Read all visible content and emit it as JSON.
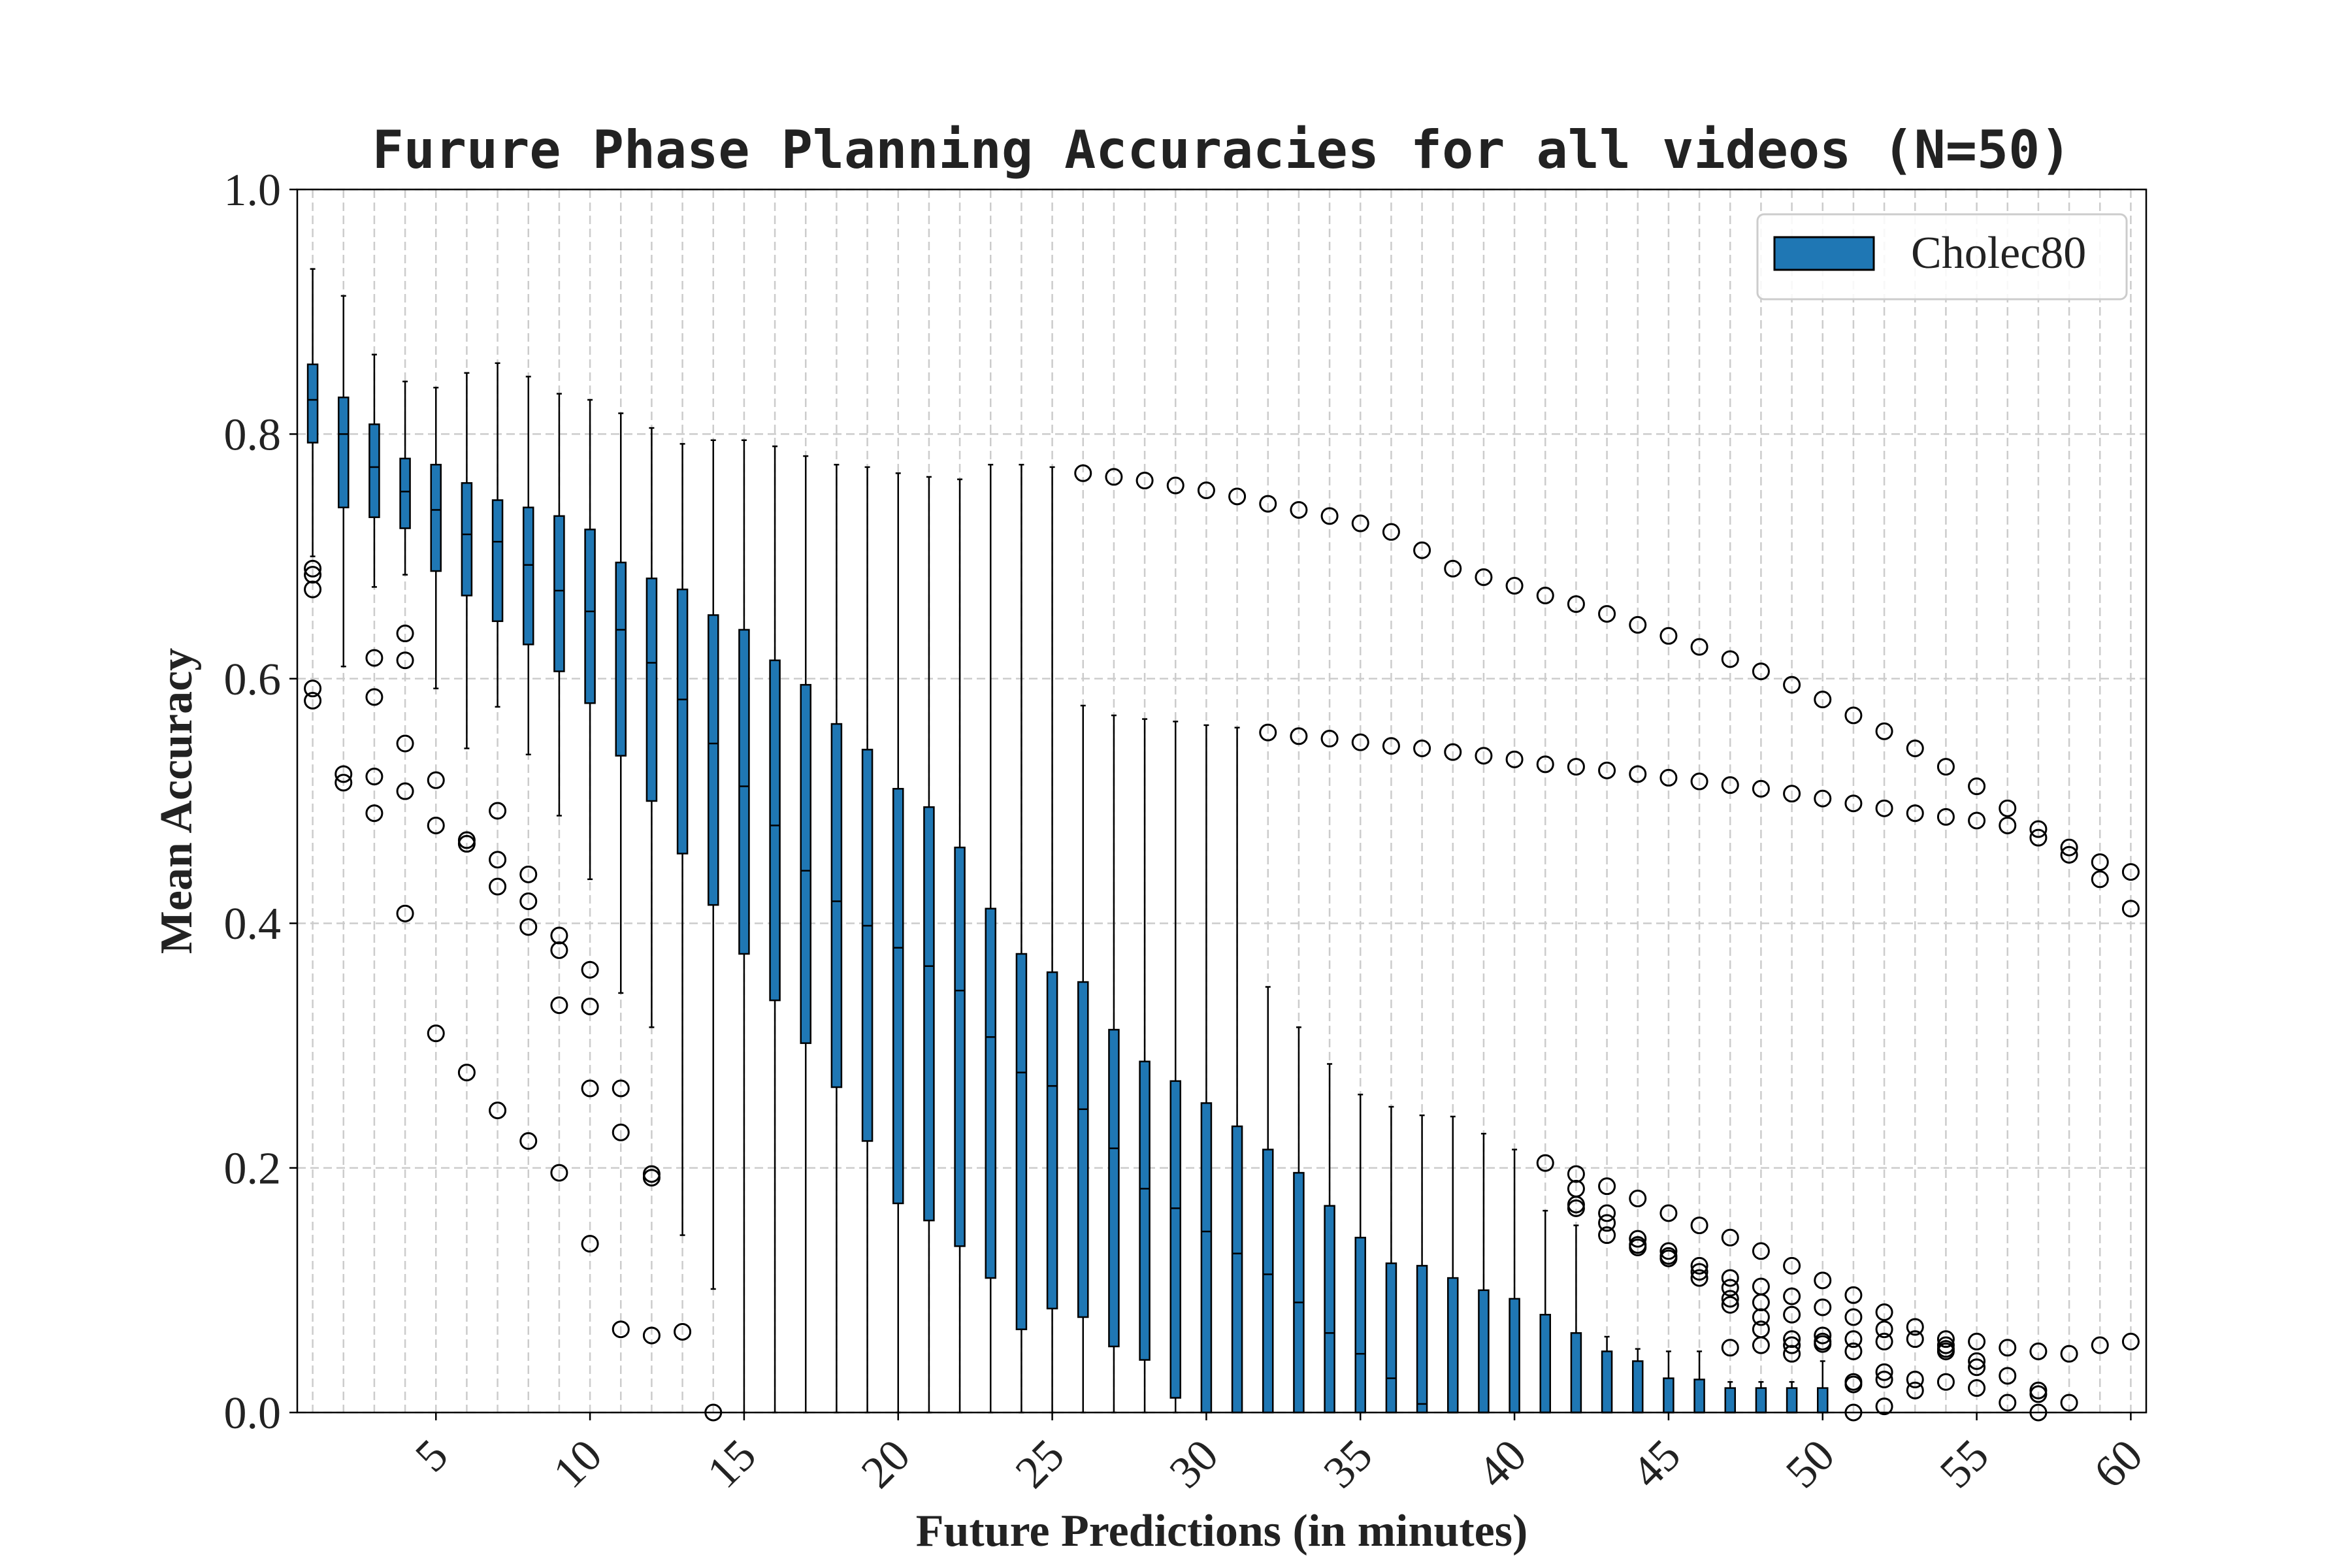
{
  "chart_data": {
    "type": "box",
    "title": "Furure Phase Planning Accuracies for all videos (N=50)",
    "xlabel": "Future Predictions (in minutes)",
    "ylabel": "Mean Accuracy",
    "xlim": [
      0.5,
      60.5
    ],
    "ylim": [
      0.0,
      1.0
    ],
    "x_ticks": [
      5,
      10,
      15,
      20,
      25,
      30,
      35,
      40,
      45,
      50,
      55,
      60
    ],
    "x_tick_labels": [
      "5",
      "10",
      "15",
      "20",
      "25",
      "30",
      "35",
      "40",
      "45",
      "50",
      "55",
      "60"
    ],
    "y_ticks": [
      0.0,
      0.2,
      0.4,
      0.6,
      0.8,
      1.0
    ],
    "y_tick_labels": [
      "0.0",
      "0.2",
      "0.4",
      "0.6",
      "0.8",
      "1.0"
    ],
    "grid": true,
    "legend": {
      "position": "upper-right",
      "entries": [
        "Cholec80"
      ]
    },
    "colors": {
      "box_fill": "#1f77b4",
      "box_edge": "#000000",
      "grid": "#cccccc"
    },
    "series": [
      {
        "name": "Cholec80",
        "x": [
          1,
          2,
          3,
          4,
          5,
          6,
          7,
          8,
          9,
          10,
          11,
          12,
          13,
          14,
          15,
          16,
          17,
          18,
          19,
          20,
          21,
          22,
          23,
          24,
          25,
          26,
          27,
          28,
          29,
          30,
          31,
          32,
          33,
          34,
          35,
          36,
          37,
          38,
          39,
          40,
          41,
          42,
          43,
          44,
          45,
          46,
          47,
          48,
          49,
          50,
          51,
          52,
          53,
          54,
          55,
          56,
          57,
          58,
          59,
          60
        ],
        "q1": [
          0.793,
          0.74,
          0.732,
          0.723,
          0.688,
          0.668,
          0.647,
          0.628,
          0.606,
          0.58,
          0.537,
          0.5,
          0.457,
          0.415,
          0.375,
          0.337,
          0.302,
          0.266,
          0.222,
          0.171,
          0.157,
          0.136,
          0.11,
          0.068,
          0.085,
          0.078,
          0.054,
          0.043,
          0.012,
          0,
          0,
          0,
          0,
          0,
          0,
          0,
          0,
          0,
          0,
          0,
          0,
          0,
          0,
          0,
          0,
          0,
          0,
          0,
          0,
          0,
          0,
          0,
          0,
          0,
          0,
          0,
          0,
          0,
          0,
          0
        ],
        "median": [
          0.828,
          0.8,
          0.773,
          0.753,
          0.738,
          0.718,
          0.712,
          0.693,
          0.672,
          0.655,
          0.64,
          0.613,
          0.583,
          0.547,
          0.512,
          0.48,
          0.443,
          0.418,
          0.398,
          0.38,
          0.365,
          0.345,
          0.307,
          0.278,
          0.267,
          0.248,
          0.216,
          0.183,
          0.167,
          0.148,
          0.13,
          0.113,
          0.09,
          0.065,
          0.048,
          0.028,
          0.007,
          0,
          0,
          0,
          0,
          0,
          0,
          0,
          0,
          0,
          0,
          0,
          0,
          0,
          0,
          0,
          0,
          0,
          0,
          0,
          0,
          0,
          0,
          0
        ],
        "q3": [
          0.857,
          0.83,
          0.808,
          0.78,
          0.775,
          0.76,
          0.746,
          0.74,
          0.733,
          0.722,
          0.695,
          0.682,
          0.673,
          0.652,
          0.64,
          0.615,
          0.595,
          0.563,
          0.542,
          0.51,
          0.495,
          0.462,
          0.412,
          0.375,
          0.36,
          0.352,
          0.313,
          0.287,
          0.271,
          0.253,
          0.234,
          0.215,
          0.196,
          0.169,
          0.143,
          0.122,
          0.12,
          0.11,
          0.1,
          0.093,
          0.08,
          0.065,
          0.05,
          0.042,
          0.028,
          0.027,
          0.02,
          0.02,
          0.02,
          0.02,
          0,
          0,
          0,
          0,
          0,
          0,
          0,
          0,
          0,
          0
        ],
        "whisker_low": [
          0.7,
          0.61,
          0.675,
          0.685,
          0.592,
          0.543,
          0.577,
          0.538,
          0.488,
          0.436,
          0.343,
          0.315,
          0.145,
          0.101,
          0,
          0,
          0,
          0,
          0,
          0,
          0,
          0,
          0,
          0,
          0,
          0,
          0,
          0,
          0,
          0,
          0,
          0,
          0,
          0,
          0,
          0,
          0,
          0,
          0,
          0,
          0,
          0,
          0,
          0,
          0,
          0,
          0,
          0,
          0,
          0,
          0,
          0,
          0,
          0,
          0,
          0,
          0,
          0,
          0,
          0
        ],
        "whisker_high": [
          0.935,
          0.913,
          0.865,
          0.843,
          0.838,
          0.85,
          0.858,
          0.847,
          0.833,
          0.828,
          0.817,
          0.805,
          0.792,
          0.795,
          0.795,
          0.79,
          0.782,
          0.775,
          0.773,
          0.768,
          0.765,
          0.763,
          0.775,
          0.775,
          0.773,
          0.578,
          0.57,
          0.567,
          0.565,
          0.562,
          0.56,
          0.348,
          0.315,
          0.285,
          0.26,
          0.25,
          0.243,
          0.242,
          0.228,
          0.215,
          0.165,
          0.153,
          0.062,
          0.052,
          0.05,
          0.05,
          0.025,
          0.025,
          0.025,
          0.042,
          0,
          0,
          0,
          0,
          0,
          0,
          0,
          0,
          0,
          0
        ],
        "outliers": [
          [
            0.69,
            0.685,
            0.673,
            0.592,
            0.582
          ],
          [
            0.522,
            0.515
          ],
          [
            0.617,
            0.585,
            0.52,
            0.49
          ],
          [
            0.637,
            0.615,
            0.547,
            0.508,
            0.408
          ],
          [
            0.517,
            0.48,
            0.31
          ],
          [
            0.468,
            0.465,
            0.278
          ],
          [
            0.492,
            0.452,
            0.43,
            0.247
          ],
          [
            0.44,
            0.418,
            0.397,
            0.222
          ],
          [
            0.39,
            0.378,
            0.333,
            0.196
          ],
          [
            0.362,
            0.332,
            0.265,
            0.138
          ],
          [
            0.265,
            0.229,
            0.068
          ],
          [
            0.195,
            0.192,
            0.063
          ],
          [
            0.066
          ],
          [
            0.0
          ],
          [],
          [],
          [],
          [],
          [],
          [],
          [],
          [],
          [],
          [],
          [],
          [
            0.768
          ],
          [
            0.765
          ],
          [
            0.762
          ],
          [
            0.758
          ],
          [
            0.754
          ],
          [
            0.749
          ],
          [
            0.743,
            0.556
          ],
          [
            0.738,
            0.553
          ],
          [
            0.733,
            0.551
          ],
          [
            0.727,
            0.548
          ],
          [
            0.72,
            0.545
          ],
          [
            0.705,
            0.543
          ],
          [
            0.69,
            0.54
          ],
          [
            0.683,
            0.537
          ],
          [
            0.676,
            0.534
          ],
          [
            0.668,
            0.53,
            0.204
          ],
          [
            0.661,
            0.528,
            0.195,
            0.183,
            0.17,
            0.167
          ],
          [
            0.653,
            0.525,
            0.185,
            0.163,
            0.155,
            0.145
          ],
          [
            0.644,
            0.522,
            0.175,
            0.142,
            0.137,
            0.135
          ],
          [
            0.635,
            0.519,
            0.163,
            0.132,
            0.128,
            0.126
          ],
          [
            0.626,
            0.516,
            0.153,
            0.12,
            0.115,
            0.11
          ],
          [
            0.616,
            0.513,
            0.143,
            0.11,
            0.102,
            0.093,
            0.088,
            0.053
          ],
          [
            0.606,
            0.51,
            0.132,
            0.103,
            0.09,
            0.078,
            0.068,
            0.055
          ],
          [
            0.595,
            0.506,
            0.12,
            0.095,
            0.08,
            0.06,
            0.055,
            0.048
          ],
          [
            0.583,
            0.502,
            0.108,
            0.086,
            0.063,
            0.058,
            0.056
          ],
          [
            0.57,
            0.498,
            0.096,
            0.078,
            0.06,
            0.05,
            0.025,
            0.023,
            0.0
          ],
          [
            0.557,
            0.494,
            0.082,
            0.068,
            0.058,
            0.033,
            0.027,
            0.005
          ],
          [
            0.543,
            0.49,
            0.07,
            0.06,
            0.027,
            0.018
          ],
          [
            0.528,
            0.487,
            0.06,
            0.055,
            0.052,
            0.05,
            0.025
          ],
          [
            0.512,
            0.484,
            0.058,
            0.042,
            0.037,
            0.02
          ],
          [
            0.494,
            0.48,
            0.053,
            0.03,
            0.008
          ],
          [
            0.477,
            0.47,
            0.05,
            0.018,
            0.015,
            0.0
          ],
          [
            0.462,
            0.456,
            0.048,
            0.008
          ],
          [
            0.45,
            0.436,
            0.055
          ],
          [
            0.442,
            0.412,
            0.058
          ]
        ]
      }
    ]
  }
}
